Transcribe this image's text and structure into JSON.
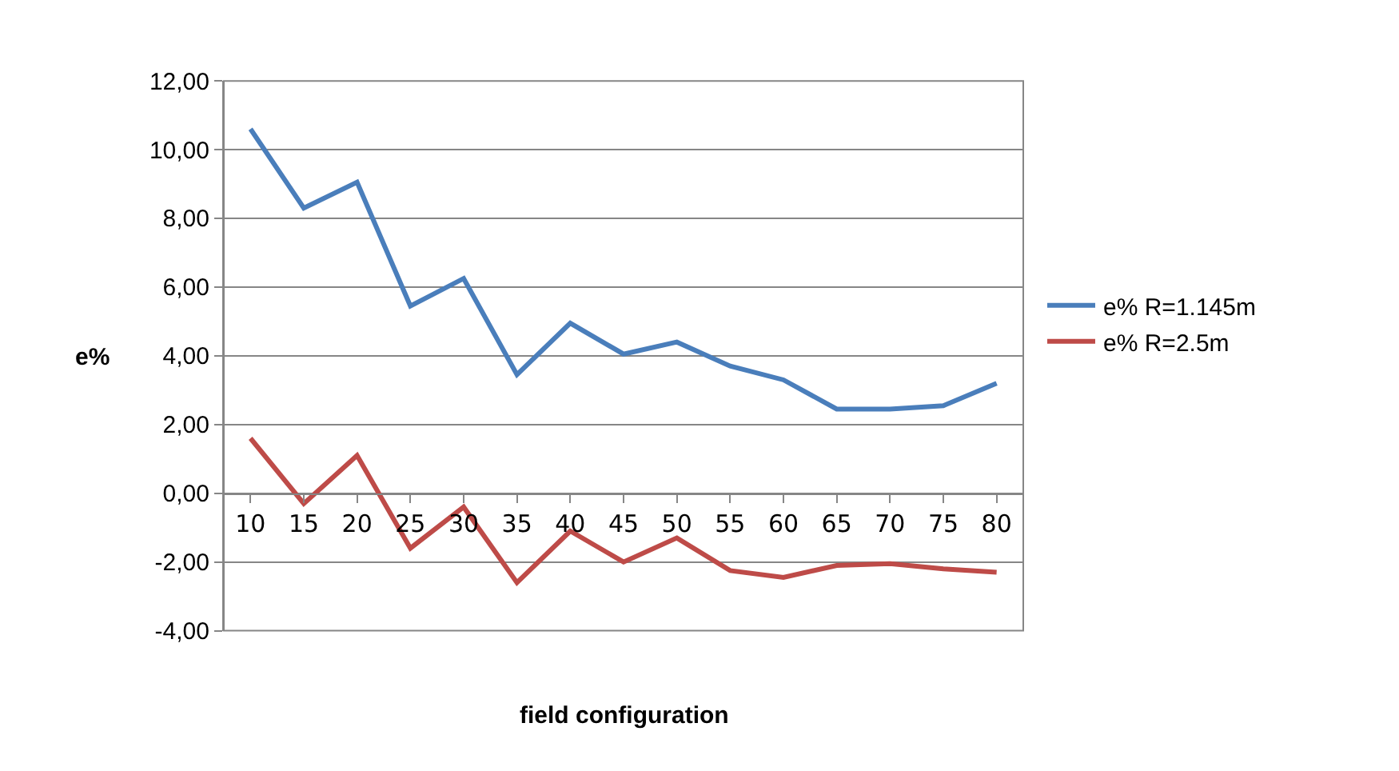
{
  "chart_data": {
    "type": "line",
    "xlabel": "field configuration",
    "ylabel": "e%",
    "categories": [
      "10",
      "15",
      "20",
      "25",
      "30",
      "35",
      "40",
      "45",
      "50",
      "55",
      "60",
      "65",
      "70",
      "75",
      "80"
    ],
    "series": [
      {
        "name": "e% R=1.145m",
        "color": "#4a7ebb",
        "values": [
          10.6,
          8.3,
          9.05,
          5.45,
          6.25,
          3.45,
          4.95,
          4.05,
          4.4,
          3.7,
          3.3,
          2.45,
          2.45,
          2.55,
          3.2
        ]
      },
      {
        "name": "e% R=2.5m",
        "color": "#be4b48",
        "values": [
          1.6,
          -0.3,
          1.1,
          -1.6,
          -0.4,
          -2.6,
          -1.1,
          -2.0,
          -1.3,
          -2.25,
          -2.45,
          -2.1,
          -2.05,
          -2.2,
          -2.3
        ]
      }
    ],
    "ylim": [
      -4,
      12
    ],
    "yticks": [
      {
        "value": -4,
        "label": "-4,00"
      },
      {
        "value": -2,
        "label": "-2,00"
      },
      {
        "value": 0,
        "label": "0,00"
      },
      {
        "value": 2,
        "label": "2,00"
      },
      {
        "value": 4,
        "label": "4,00"
      },
      {
        "value": 6,
        "label": "6,00"
      },
      {
        "value": 8,
        "label": "8,00"
      },
      {
        "value": 10,
        "label": "10,00"
      },
      {
        "value": 12,
        "label": "12,00"
      }
    ],
    "grid": "y",
    "legend": "right",
    "marker": "none",
    "line_style": "solid"
  }
}
